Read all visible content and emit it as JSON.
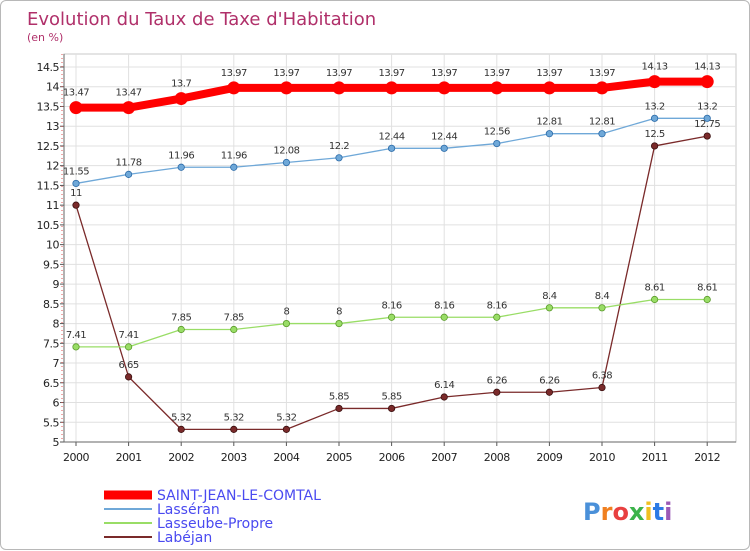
{
  "chart_data": {
    "type": "line",
    "title": "Evolution du Taux de Taxe d'Habitation",
    "subtitle": "(en %)",
    "x": [
      "2000",
      "2001",
      "2002",
      "2003",
      "2004",
      "2005",
      "2006",
      "2007",
      "2008",
      "2009",
      "2010",
      "2011",
      "2012"
    ],
    "ylim": [
      5,
      14.5
    ],
    "yticks": [
      5,
      5.5,
      6,
      6.5,
      7,
      7.5,
      8,
      8.5,
      9,
      9.5,
      10,
      10.5,
      11,
      11.5,
      12,
      12.5,
      13,
      13.5,
      14,
      14.5
    ],
    "ytick_labels": [
      "5",
      "5.5",
      "6",
      "6.5",
      "7",
      "7.5",
      "8",
      "8.5",
      "9",
      "9.5",
      "10",
      "10.5",
      "11",
      "11.5",
      "12",
      "12.5",
      "13",
      "13.5",
      "14",
      "14.5"
    ],
    "grid": true,
    "legend_position": "bottom-left",
    "series": [
      {
        "name": "SAINT-JEAN-LE-COMTAL",
        "color": "#ff0000",
        "values": [
          13.47,
          13.47,
          13.7,
          13.97,
          13.97,
          13.97,
          13.97,
          13.97,
          13.97,
          13.97,
          13.97,
          14.13,
          14.13
        ],
        "labels": [
          "13.47",
          "13.47",
          "13.7",
          "13.97",
          "13.97",
          "13.97",
          "13.97",
          "13.97",
          "13.97",
          "13.97",
          "13.97",
          "14.13",
          "14.13"
        ]
      },
      {
        "name": "Lasséran",
        "color": "#6fa8d8",
        "values": [
          11.55,
          11.78,
          11.96,
          11.96,
          12.08,
          12.2,
          12.44,
          12.44,
          12.56,
          12.81,
          12.81,
          13.2,
          13.2
        ],
        "labels": [
          "11.55",
          "11.78",
          "11.96",
          "11.96",
          "12.08",
          "12.2",
          "12.44",
          "12.44",
          "12.56",
          "12.81",
          "12.81",
          "13.2",
          "13.2"
        ]
      },
      {
        "name": "Lasseube-Propre",
        "color": "#99dd66",
        "values": [
          7.41,
          7.41,
          7.85,
          7.85,
          8,
          8,
          8.16,
          8.16,
          8.16,
          8.4,
          8.4,
          8.61,
          8.61
        ],
        "labels": [
          "7.41",
          "7.41",
          "7.85",
          "7.85",
          "8",
          "8",
          "8.16",
          "8.16",
          "8.16",
          "8.4",
          "8.4",
          "8.61",
          "8.61"
        ]
      },
      {
        "name": "Labéjan",
        "color": "#7a2a2a",
        "values": [
          11,
          6.65,
          5.32,
          5.32,
          5.32,
          5.85,
          5.85,
          6.14,
          6.26,
          6.26,
          6.38,
          12.5,
          12.75
        ],
        "labels": [
          "11",
          "6.65",
          "5.32",
          "5.32",
          "5.32",
          "5.85",
          "5.85",
          "6.14",
          "6.26",
          "6.26",
          "6.38",
          "12.5",
          "12.75"
        ]
      }
    ]
  },
  "logo": {
    "text": "Proxiti"
  }
}
